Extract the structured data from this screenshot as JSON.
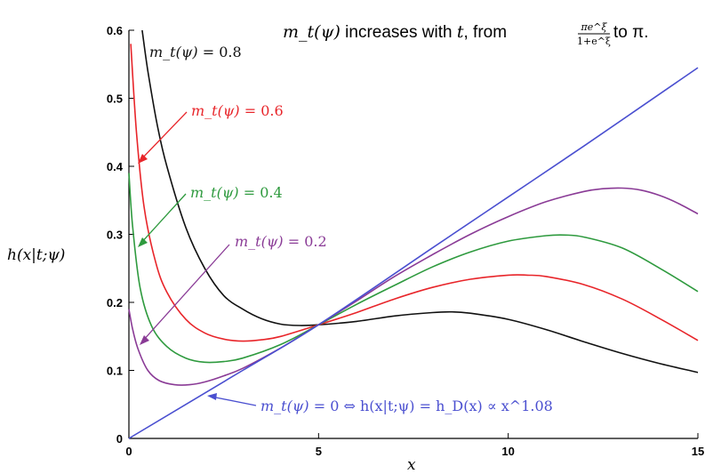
{
  "chart_data": {
    "type": "line",
    "title_parts": {
      "lead": "m_t(ψ)",
      "middle": " increases with ",
      "var": "t",
      "from": ", from ",
      "frac_num": "πe^ξ",
      "frac_den": "1+e^ξ",
      "to": " to π."
    },
    "xlabel": "x",
    "ylabel": "h(x|t;ψ)",
    "xlim": [
      0,
      15
    ],
    "ylim": [
      0,
      0.6
    ],
    "xticks": [
      "0",
      "5",
      "10",
      "15"
    ],
    "yticks": [
      "0",
      "0.1",
      "0.2",
      "0.3",
      "0.4",
      "0.5",
      "0.6"
    ],
    "grid": false,
    "series": [
      {
        "name": "m_t(ψ) = 0.8",
        "color": "#111111",
        "x": [
          0.35,
          0.5,
          0.75,
          1,
          1.5,
          2,
          2.5,
          3,
          3.5,
          4,
          4.5,
          5,
          6,
          7,
          8,
          8.5,
          9,
          10,
          11,
          12,
          13,
          14,
          15
        ],
        "y": [
          0.6,
          0.54,
          0.46,
          0.4,
          0.31,
          0.25,
          0.21,
          0.19,
          0.176,
          0.168,
          0.166,
          0.167,
          0.172,
          0.18,
          0.185,
          0.186,
          0.184,
          0.175,
          0.16,
          0.142,
          0.125,
          0.11,
          0.097
        ]
      },
      {
        "name": "m_t(ψ) = 0.6",
        "color": "#e8252a",
        "x": [
          0.05,
          0.2,
          0.4,
          0.7,
          1,
          1.5,
          2,
          2.5,
          3,
          3.5,
          4,
          5,
          6,
          7,
          8,
          9,
          10,
          10.5,
          11,
          12,
          13,
          14,
          15
        ],
        "y": [
          0.58,
          0.45,
          0.34,
          0.26,
          0.215,
          0.175,
          0.155,
          0.146,
          0.143,
          0.145,
          0.15,
          0.167,
          0.185,
          0.205,
          0.222,
          0.234,
          0.24,
          0.24,
          0.238,
          0.226,
          0.205,
          0.176,
          0.144
        ]
      },
      {
        "name": "m_t(ψ) = 0.4",
        "color": "#2e9a3e",
        "x": [
          0,
          0.1,
          0.3,
          0.6,
          1,
          1.5,
          2,
          2.5,
          3,
          4,
          5,
          6,
          7,
          8,
          9,
          10,
          11,
          11.5,
          12,
          13,
          14,
          15
        ],
        "y": [
          0.39,
          0.31,
          0.22,
          0.165,
          0.135,
          0.118,
          0.112,
          0.113,
          0.118,
          0.138,
          0.167,
          0.197,
          0.225,
          0.252,
          0.274,
          0.29,
          0.298,
          0.299,
          0.296,
          0.28,
          0.25,
          0.216
        ]
      },
      {
        "name": "m_t(ψ) = 0.2",
        "color": "#8a3b96",
        "x": [
          0,
          0.1,
          0.25,
          0.5,
          0.8,
          1.2,
          1.6,
          2,
          2.5,
          3,
          4,
          5,
          6,
          7,
          8,
          9,
          10,
          11,
          12,
          12.5,
          13,
          13.5,
          14,
          14.5,
          15
        ],
        "y": [
          0.19,
          0.16,
          0.13,
          0.1,
          0.085,
          0.079,
          0.079,
          0.083,
          0.092,
          0.103,
          0.133,
          0.167,
          0.202,
          0.238,
          0.27,
          0.3,
          0.326,
          0.348,
          0.363,
          0.367,
          0.368,
          0.365,
          0.357,
          0.345,
          0.33
        ]
      },
      {
        "name": "m_t(ψ) = 0 ⇔ h(x|t;ψ) = h_D(x) ∝ x^1.08",
        "color": "#4a4fd0",
        "x": [
          0,
          3,
          5,
          8,
          10,
          12,
          15
        ],
        "y": [
          0.0,
          0.1,
          0.167,
          0.28,
          0.355,
          0.43,
          0.545
        ]
      }
    ],
    "annotations": [
      {
        "lhs": "m_t(ψ)",
        "rhs": " = 0.8",
        "color": "#111111"
      },
      {
        "lhs": "m_t(ψ)",
        "rhs": " = 0.6",
        "color": "#e8252a"
      },
      {
        "lhs": "m_t(ψ)",
        "rhs": " = 0.4",
        "color": "#2e9a3e"
      },
      {
        "lhs": "m_t(ψ)",
        "rhs": " = 0.2",
        "color": "#8a3b96"
      },
      {
        "lhs": "m_t(ψ)",
        "rhs": " = 0 ⇔ h(x|t;ψ) = h_D(x) ∝ x^1.08",
        "color": "#4a4fd0"
      }
    ]
  }
}
